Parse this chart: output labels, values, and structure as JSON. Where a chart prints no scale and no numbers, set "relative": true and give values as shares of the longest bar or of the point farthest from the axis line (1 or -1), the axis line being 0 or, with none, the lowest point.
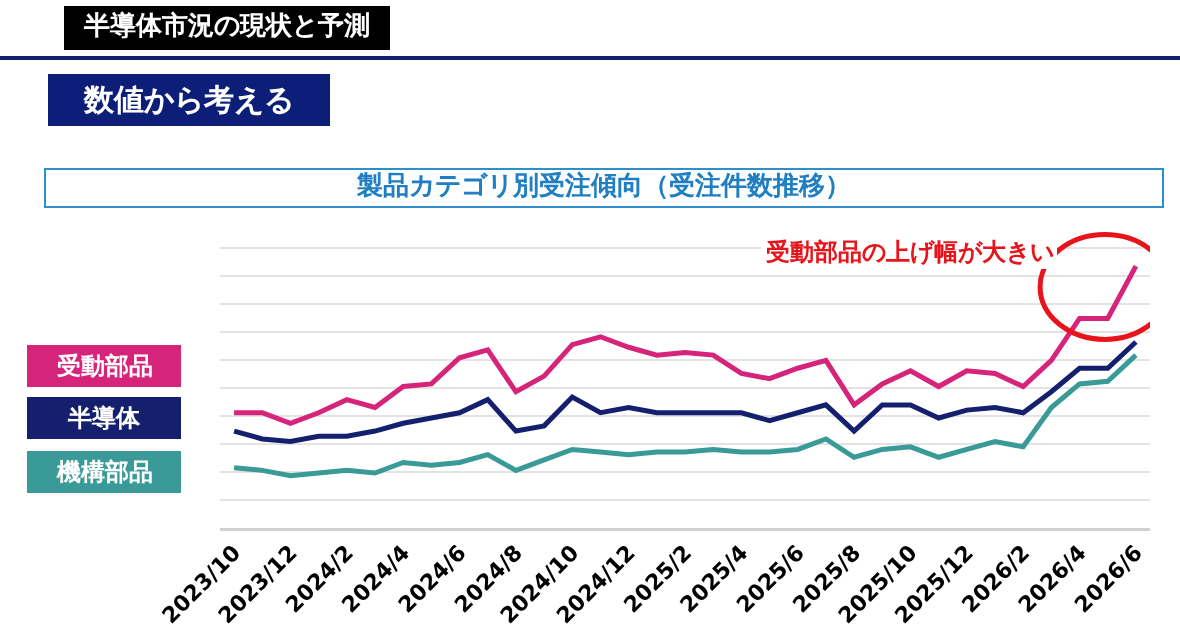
{
  "chart_data": {
    "type": "line",
    "relative": true,
    "title": "製品カテゴリ別受注傾向（受注件数推移）",
    "annotations": [
      "半導体市況の現状と予測",
      "数値から考える",
      "受動部品の上げ幅が大きい"
    ],
    "categories": [
      "2023/10",
      null,
      "2023/12",
      null,
      "2024/2",
      null,
      "2024/4",
      null,
      "2024/6",
      null,
      "2024/8",
      null,
      "2024/10",
      null,
      "2024/12",
      null,
      "2025/2",
      null,
      "2025/4",
      null,
      "2025/6",
      null,
      "2025/8",
      null,
      "2025/10",
      null,
      "2025/12",
      null,
      "2026/2",
      null,
      "2026/4",
      null,
      "2026/6"
    ],
    "series": [
      {
        "name": "受動部品",
        "color": "#d6247a",
        "values": [
          0.44,
          0.44,
          0.4,
          0.44,
          0.49,
          0.46,
          0.54,
          0.55,
          0.65,
          0.68,
          0.52,
          0.58,
          0.7,
          0.73,
          0.69,
          0.66,
          0.67,
          0.66,
          0.59,
          0.57,
          0.61,
          0.64,
          0.47,
          0.55,
          0.6,
          0.54,
          0.6,
          0.59,
          0.54,
          0.64,
          0.8,
          0.8,
          1
        ]
      },
      {
        "name": "半導体",
        "color": "#14206e",
        "values": [
          0.37,
          0.34,
          0.33,
          0.35,
          0.35,
          0.37,
          0.4,
          0.42,
          0.44,
          0.49,
          0.37,
          0.39,
          0.5,
          0.44,
          0.46,
          0.44,
          0.44,
          0.44,
          0.44,
          0.41,
          0.44,
          0.47,
          0.37,
          0.47,
          0.47,
          0.42,
          0.45,
          0.46,
          0.44,
          0.52,
          0.61,
          0.61,
          0.71
        ]
      },
      {
        "name": "機構部品",
        "color": "#3a9a98",
        "values": [
          0.23,
          0.22,
          0.2,
          0.21,
          0.22,
          0.21,
          0.25,
          0.24,
          0.25,
          0.28,
          0.22,
          0.26,
          0.3,
          0.29,
          0.28,
          0.29,
          0.29,
          0.3,
          0.29,
          0.29,
          0.3,
          0.34,
          0.27,
          0.3,
          0.31,
          0.27,
          0.3,
          0.33,
          0.31,
          0.46,
          0.55,
          0.56,
          0.66
        ]
      }
    ],
    "grid": "y",
    "legend": "left",
    "line_style": "solid",
    "marker": "none"
  }
}
